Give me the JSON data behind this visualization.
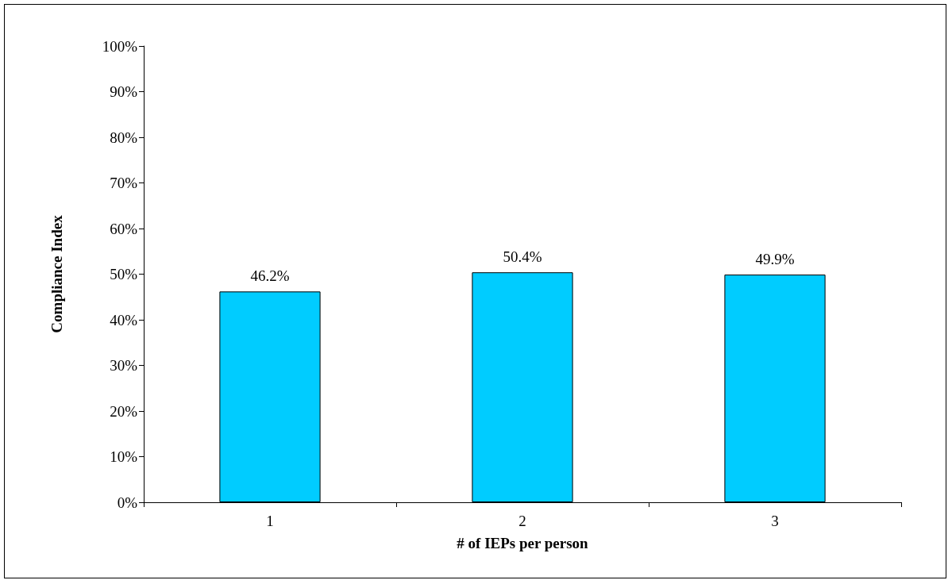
{
  "chart_data": {
    "type": "bar",
    "xlabel": "# of IEPs per person",
    "ylabel": "Compliance Index",
    "categories": [
      "1",
      "2",
      "3"
    ],
    "values": [
      46.2,
      50.4,
      49.9
    ],
    "value_labels": [
      "46.2%",
      "50.4%",
      "49.9%"
    ],
    "color": "#00ccff",
    "ylim": [
      0,
      100
    ],
    "yticks": [
      {
        "value": 0,
        "label": "0%"
      },
      {
        "value": 10,
        "label": "10%"
      },
      {
        "value": 20,
        "label": "20%"
      },
      {
        "value": 30,
        "label": "30%"
      },
      {
        "value": 40,
        "label": "40%"
      },
      {
        "value": 50,
        "label": "50%"
      },
      {
        "value": 60,
        "label": "60%"
      },
      {
        "value": 70,
        "label": "70%"
      },
      {
        "value": 80,
        "label": "80%"
      },
      {
        "value": 90,
        "label": "90%"
      },
      {
        "value": 100,
        "label": "100%"
      }
    ],
    "grid": false
  }
}
